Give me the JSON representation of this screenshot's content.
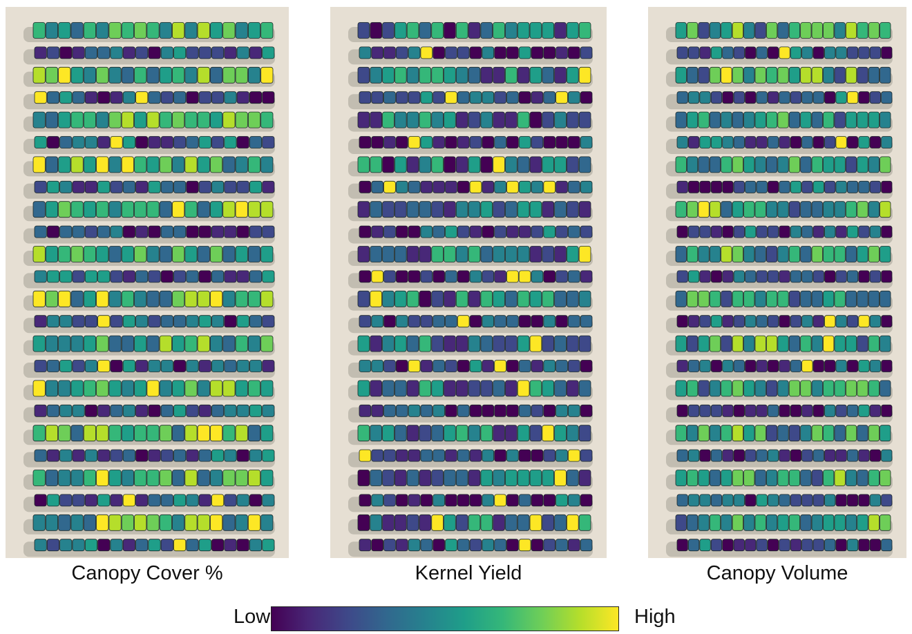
{
  "panels": [
    {
      "label": "Canopy Cover %"
    },
    {
      "label": "Kernel Yield"
    },
    {
      "label": "Canopy Volume"
    }
  ],
  "colorbar": {
    "low": "Low",
    "high": "High"
  }
}
